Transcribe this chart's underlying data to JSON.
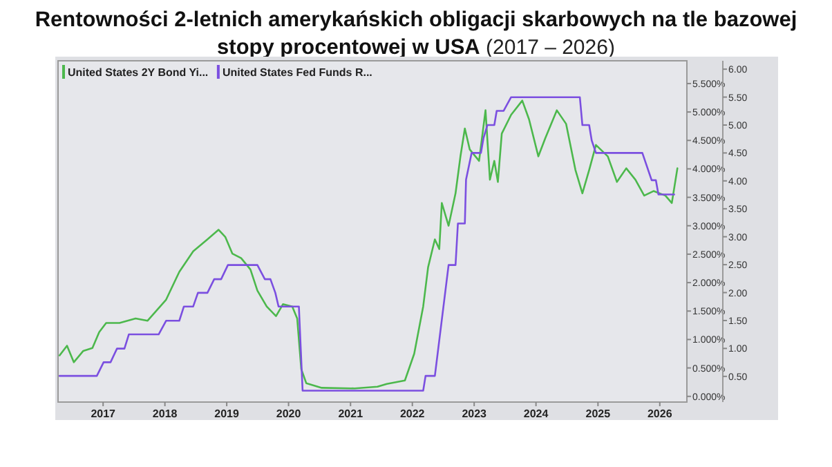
{
  "chart_data": {
    "type": "line",
    "title": "Rentowności 2-letnich amerykańskich obligacji skarbowych na tle bazowej stopy procentowej w USA",
    "subtitle": "(2017 – 2026)",
    "xlim": [
      "2016-04-10",
      "2026-06-10"
    ],
    "xticks": [
      {
        "value": "2017-01-01",
        "label": "2017"
      },
      {
        "value": "2018-01-01",
        "label": "2018"
      },
      {
        "value": "2019-01-01",
        "label": "2019"
      },
      {
        "value": "2020-01-01",
        "label": "2020"
      },
      {
        "value": "2021-01-01",
        "label": "2021"
      },
      {
        "value": "2022-01-01",
        "label": "2022"
      },
      {
        "value": "2023-01-01",
        "label": "2023"
      },
      {
        "value": "2024-01-01",
        "label": "2024"
      },
      {
        "value": "2025-01-01",
        "label": "2025"
      },
      {
        "value": "2026-01-01",
        "label": "2026"
      }
    ],
    "ylim": [
      -0.1,
      5.9
    ],
    "yticks": [
      {
        "value": 0,
        "label": "0.000%"
      },
      {
        "value": 0.5,
        "label": "0.500%"
      },
      {
        "value": 1,
        "label": "1.000%"
      },
      {
        "value": 1.5,
        "label": "1.500%"
      },
      {
        "value": 2,
        "label": "2.000%"
      },
      {
        "value": 2.5,
        "label": "2.500%"
      },
      {
        "value": 3,
        "label": "3.000%"
      },
      {
        "value": 3.5,
        "label": "3.500%"
      },
      {
        "value": 4,
        "label": "4.000%"
      },
      {
        "value": 4.5,
        "label": "4.500%"
      },
      {
        "value": 5,
        "label": "5.000%"
      },
      {
        "value": 5.5,
        "label": "5.500%"
      }
    ],
    "y2lim": [
      0.04,
      6.15
    ],
    "y2ticks": [
      {
        "value": 0.5,
        "label": "0.50"
      },
      {
        "value": 1,
        "label": "1.00"
      },
      {
        "value": 1.5,
        "label": "1.50"
      },
      {
        "value": 2,
        "label": "2.00"
      },
      {
        "value": 2.5,
        "label": "2.50"
      },
      {
        "value": 3,
        "label": "3.00"
      },
      {
        "value": 3.5,
        "label": "3.50"
      },
      {
        "value": 4,
        "label": "4.00"
      },
      {
        "value": 4.5,
        "label": "4.50"
      },
      {
        "value": 5,
        "label": "5.00"
      },
      {
        "value": 5.5,
        "label": "5.50"
      },
      {
        "value": 6,
        "label": "6.00"
      }
    ],
    "grid": false,
    "legend": "top left",
    "marker": "none",
    "line_style": "solid",
    "series": [
      {
        "name": "United States 2Y Bond Yi...",
        "color": "#4cb84c",
        "x": [
          "2016-04-19",
          "2016-06-02",
          "2016-07-12",
          "2016-09-06",
          "2016-10-30",
          "2016-12-09",
          "2017-01-19",
          "2017-04-08",
          "2017-07-12",
          "2017-09-20",
          "2018-01-08",
          "2018-03-27",
          "2018-06-17",
          "2018-09-09",
          "2018-11-14",
          "2018-12-24",
          "2019-02-03",
          "2019-03-27",
          "2019-05-21",
          "2019-07-01",
          "2019-08-25",
          "2019-10-19",
          "2019-11-29",
          "2020-01-23",
          "2020-02-21",
          "2020-03-16",
          "2020-04-15",
          "2020-07-15",
          "2021-01-26",
          "2021-06-09",
          "2021-08-03",
          "2021-11-18",
          "2022-01-12",
          "2022-03-06",
          "2022-04-04",
          "2022-05-14",
          "2022-06-09",
          "2022-06-24",
          "2022-08-03",
          "2022-09-13",
          "2022-10-12",
          "2022-11-07",
          "2022-12-06",
          "2023-01-30",
          "2023-03-09",
          "2023-04-04",
          "2023-04-30",
          "2023-05-21",
          "2023-06-13",
          "2023-08-07",
          "2023-10-12",
          "2023-11-21",
          "2024-01-15",
          "2024-02-25",
          "2024-05-03",
          "2024-06-27",
          "2024-08-21",
          "2024-10-01",
          "2024-11-10",
          "2024-12-20",
          "2025-02-28",
          "2025-04-23",
          "2025-06-17",
          "2025-08-10",
          "2025-10-01",
          "2025-11-25",
          "2026-02-03",
          "2026-03-13",
          "2026-04-15"
        ],
        "values": [
          0.72,
          0.89,
          0.6,
          0.8,
          0.85,
          1.13,
          1.29,
          1.29,
          1.37,
          1.33,
          1.7,
          2.19,
          2.55,
          2.76,
          2.93,
          2.8,
          2.51,
          2.43,
          2.23,
          1.86,
          1.58,
          1.41,
          1.62,
          1.58,
          1.37,
          0.48,
          0.23,
          0.15,
          0.14,
          0.17,
          0.22,
          0.28,
          0.75,
          1.58,
          2.27,
          2.76,
          2.59,
          3.4,
          3.0,
          3.57,
          4.22,
          4.71,
          4.34,
          4.14,
          5.03,
          3.81,
          4.14,
          3.77,
          4.62,
          4.95,
          5.2,
          4.87,
          4.22,
          4.54,
          5.03,
          4.79,
          3.98,
          3.57,
          3.98,
          4.42,
          4.22,
          3.77,
          4.01,
          3.81,
          3.53,
          3.61,
          3.53,
          3.4,
          4.01
        ]
      },
      {
        "name": "United States Fed Funds R...",
        "color": "#7b4fe0",
        "x": [
          "2016-04-19",
          "2016-11-25",
          "2017-01-04",
          "2017-02-14",
          "2017-03-24",
          "2017-05-07",
          "2017-06-02",
          "2017-11-25",
          "2018-01-08",
          "2018-03-27",
          "2018-04-23",
          "2018-06-17",
          "2018-07-15",
          "2018-09-09",
          "2018-10-19",
          "2018-11-29",
          "2019-01-08",
          "2019-07-01",
          "2019-08-14",
          "2019-09-16",
          "2019-10-15",
          "2019-11-03",
          "2020-03-02",
          "2020-03-24",
          "2022-03-06",
          "2022-03-20",
          "2022-05-14",
          "2022-08-03",
          "2022-09-13",
          "2022-09-27",
          "2022-11-07",
          "2022-11-14",
          "2022-12-17",
          "2023-02-10",
          "2023-02-25",
          "2023-03-20",
          "2023-04-30",
          "2023-05-14",
          "2023-06-24",
          "2023-08-07",
          "2024-09-16",
          "2024-10-01",
          "2024-11-10",
          "2024-11-25",
          "2024-12-20",
          "2025-09-20",
          "2025-11-14",
          "2025-12-09",
          "2025-12-24",
          "2026-03-27"
        ],
        "values": [
          0.36,
          0.36,
          0.6,
          0.6,
          0.84,
          0.84,
          1.09,
          1.09,
          1.33,
          1.33,
          1.58,
          1.58,
          1.82,
          1.82,
          2.06,
          2.06,
          2.31,
          2.31,
          2.06,
          2.06,
          1.82,
          1.58,
          1.58,
          0.1,
          0.1,
          0.36,
          0.36,
          2.31,
          2.31,
          3.04,
          3.04,
          3.81,
          4.28,
          4.28,
          4.54,
          4.77,
          4.77,
          5.02,
          5.02,
          5.26,
          5.26,
          4.77,
          4.77,
          4.5,
          4.28,
          4.28,
          3.8,
          3.8,
          3.55,
          3.55
        ]
      }
    ]
  }
}
